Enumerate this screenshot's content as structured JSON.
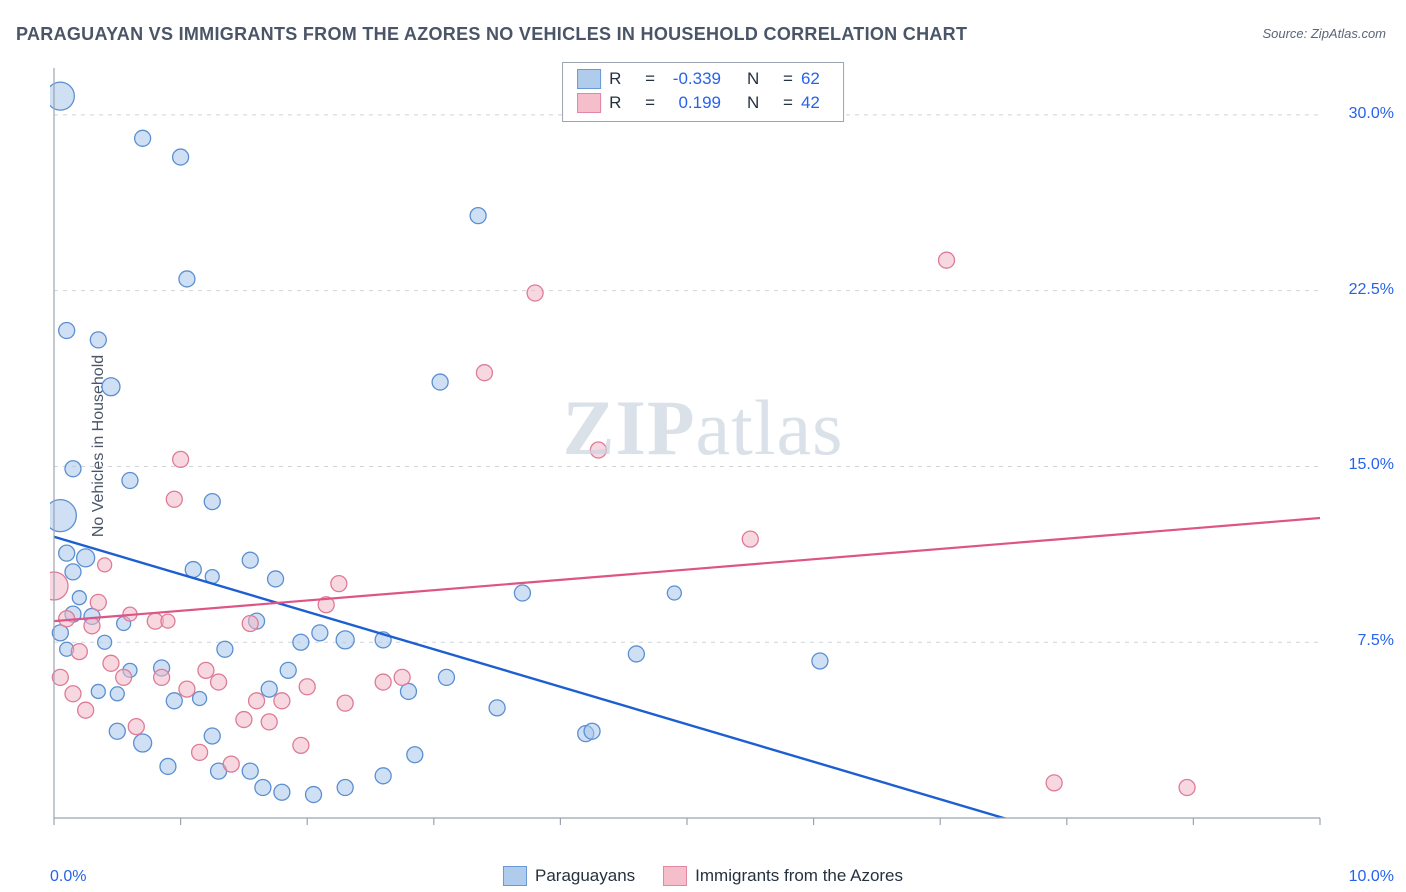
{
  "title": "PARAGUAYAN VS IMMIGRANTS FROM THE AZORES NO VEHICLES IN HOUSEHOLD CORRELATION CHART",
  "source_label": "Source: ZipAtlas.com",
  "ylabel": "No Vehicles in Household",
  "watermark_bold": "ZIP",
  "watermark_rest": "atlas",
  "chart": {
    "type": "scatter",
    "background_color": "#ffffff",
    "grid_color": "#d1d5db",
    "axis_color": "#9ca3af",
    "tick_color": "#9ca3af",
    "label_fontsize": 16,
    "title_fontsize": 18,
    "axis_label_color": "#2563eb",
    "xlim": [
      0,
      10
    ],
    "ylim": [
      0,
      32
    ],
    "x_ticks": [
      0,
      1,
      2,
      3,
      4,
      5,
      6,
      7,
      8,
      9,
      10
    ],
    "x_tick_labels": {
      "0": "0.0%",
      "10": "10.0%"
    },
    "y_gridlines": [
      7.5,
      15.0,
      22.5,
      30.0
    ],
    "y_tick_labels": [
      "7.5%",
      "15.0%",
      "22.5%",
      "30.0%"
    ],
    "series": [
      {
        "name": "Paraguayans",
        "fill_color": "#a8c7ec",
        "stroke_color": "#5b8fd1",
        "fill_opacity": 0.55,
        "marker_stroke_width": 1.3,
        "R": "-0.339",
        "N": "62",
        "regression": {
          "x1": 0,
          "y1": 12.0,
          "x2": 10,
          "y2": -4.0,
          "color": "#1d5fd1",
          "width": 2.4
        },
        "points": [
          {
            "x": 0.05,
            "y": 30.8,
            "r": 14
          },
          {
            "x": 0.7,
            "y": 29.0,
            "r": 8
          },
          {
            "x": 1.0,
            "y": 28.2,
            "r": 8
          },
          {
            "x": 0.05,
            "y": 12.9,
            "r": 16
          },
          {
            "x": 0.1,
            "y": 20.8,
            "r": 8
          },
          {
            "x": 0.35,
            "y": 20.4,
            "r": 8
          },
          {
            "x": 0.45,
            "y": 18.4,
            "r": 9
          },
          {
            "x": 1.05,
            "y": 23.0,
            "r": 8
          },
          {
            "x": 0.15,
            "y": 14.9,
            "r": 8
          },
          {
            "x": 0.6,
            "y": 14.4,
            "r": 8
          },
          {
            "x": 0.1,
            "y": 11.3,
            "r": 8
          },
          {
            "x": 0.25,
            "y": 11.1,
            "r": 9
          },
          {
            "x": 0.15,
            "y": 10.5,
            "r": 8
          },
          {
            "x": 0.2,
            "y": 9.4,
            "r": 7
          },
          {
            "x": 0.15,
            "y": 8.7,
            "r": 8
          },
          {
            "x": 0.3,
            "y": 8.6,
            "r": 8
          },
          {
            "x": 0.55,
            "y": 8.3,
            "r": 7
          },
          {
            "x": 0.05,
            "y": 7.9,
            "r": 8
          },
          {
            "x": 0.1,
            "y": 7.2,
            "r": 7
          },
          {
            "x": 0.4,
            "y": 7.5,
            "r": 7
          },
          {
            "x": 0.6,
            "y": 6.3,
            "r": 7
          },
          {
            "x": 0.85,
            "y": 6.4,
            "r": 8
          },
          {
            "x": 0.35,
            "y": 5.4,
            "r": 7
          },
          {
            "x": 0.5,
            "y": 5.3,
            "r": 7
          },
          {
            "x": 0.95,
            "y": 5.0,
            "r": 8
          },
          {
            "x": 1.15,
            "y": 5.1,
            "r": 7
          },
          {
            "x": 1.1,
            "y": 10.6,
            "r": 8
          },
          {
            "x": 1.25,
            "y": 13.5,
            "r": 8
          },
          {
            "x": 1.25,
            "y": 10.3,
            "r": 7
          },
          {
            "x": 1.35,
            "y": 7.2,
            "r": 8
          },
          {
            "x": 1.55,
            "y": 11.0,
            "r": 8
          },
          {
            "x": 1.6,
            "y": 8.4,
            "r": 8
          },
          {
            "x": 1.7,
            "y": 5.5,
            "r": 8
          },
          {
            "x": 1.75,
            "y": 10.2,
            "r": 8
          },
          {
            "x": 1.85,
            "y": 6.3,
            "r": 8
          },
          {
            "x": 1.95,
            "y": 7.5,
            "r": 8
          },
          {
            "x": 2.1,
            "y": 7.9,
            "r": 8
          },
          {
            "x": 2.3,
            "y": 7.6,
            "r": 9
          },
          {
            "x": 2.6,
            "y": 7.6,
            "r": 8
          },
          {
            "x": 2.8,
            "y": 5.4,
            "r": 8
          },
          {
            "x": 2.85,
            "y": 2.7,
            "r": 8
          },
          {
            "x": 3.05,
            "y": 18.6,
            "r": 8
          },
          {
            "x": 3.1,
            "y": 6.0,
            "r": 8
          },
          {
            "x": 3.35,
            "y": 25.7,
            "r": 8
          },
          {
            "x": 3.5,
            "y": 4.7,
            "r": 8
          },
          {
            "x": 3.7,
            "y": 9.6,
            "r": 8
          },
          {
            "x": 4.2,
            "y": 3.6,
            "r": 8
          },
          {
            "x": 4.25,
            "y": 3.7,
            "r": 8
          },
          {
            "x": 4.6,
            "y": 7.0,
            "r": 8
          },
          {
            "x": 4.9,
            "y": 9.6,
            "r": 7
          },
          {
            "x": 6.05,
            "y": 6.7,
            "r": 8
          },
          {
            "x": 0.7,
            "y": 3.2,
            "r": 9
          },
          {
            "x": 0.9,
            "y": 2.2,
            "r": 8
          },
          {
            "x": 1.25,
            "y": 3.5,
            "r": 8
          },
          {
            "x": 1.3,
            "y": 2.0,
            "r": 8
          },
          {
            "x": 1.55,
            "y": 2.0,
            "r": 8
          },
          {
            "x": 1.65,
            "y": 1.3,
            "r": 8
          },
          {
            "x": 1.8,
            "y": 1.1,
            "r": 8
          },
          {
            "x": 2.05,
            "y": 1.0,
            "r": 8
          },
          {
            "x": 2.3,
            "y": 1.3,
            "r": 8
          },
          {
            "x": 2.6,
            "y": 1.8,
            "r": 8
          },
          {
            "x": 0.5,
            "y": 3.7,
            "r": 8
          }
        ]
      },
      {
        "name": "Immigrants from the Azores",
        "fill_color": "#f3b8c6",
        "stroke_color": "#de7b97",
        "fill_opacity": 0.55,
        "marker_stroke_width": 1.3,
        "R": "0.199",
        "N": "42",
        "regression": {
          "x1": 0,
          "y1": 8.4,
          "x2": 10,
          "y2": 12.8,
          "color": "#de5585",
          "width": 2.2
        },
        "points": [
          {
            "x": 0.0,
            "y": 9.9,
            "r": 14
          },
          {
            "x": 0.1,
            "y": 8.5,
            "r": 8
          },
          {
            "x": 0.2,
            "y": 7.1,
            "r": 8
          },
          {
            "x": 0.3,
            "y": 8.2,
            "r": 8
          },
          {
            "x": 0.35,
            "y": 9.2,
            "r": 8
          },
          {
            "x": 0.45,
            "y": 6.6,
            "r": 8
          },
          {
            "x": 0.6,
            "y": 8.7,
            "r": 7
          },
          {
            "x": 0.55,
            "y": 6.0,
            "r": 8
          },
          {
            "x": 0.8,
            "y": 8.4,
            "r": 8
          },
          {
            "x": 0.85,
            "y": 6.0,
            "r": 8
          },
          {
            "x": 0.9,
            "y": 8.4,
            "r": 7
          },
          {
            "x": 0.95,
            "y": 13.6,
            "r": 8
          },
          {
            "x": 1.0,
            "y": 15.3,
            "r": 8
          },
          {
            "x": 1.05,
            "y": 5.5,
            "r": 8
          },
          {
            "x": 1.2,
            "y": 6.3,
            "r": 8
          },
          {
            "x": 1.3,
            "y": 5.8,
            "r": 8
          },
          {
            "x": 1.5,
            "y": 4.2,
            "r": 8
          },
          {
            "x": 1.55,
            "y": 8.3,
            "r": 8
          },
          {
            "x": 1.6,
            "y": 5.0,
            "r": 8
          },
          {
            "x": 1.7,
            "y": 4.1,
            "r": 8
          },
          {
            "x": 1.8,
            "y": 5.0,
            "r": 8
          },
          {
            "x": 1.95,
            "y": 3.1,
            "r": 8
          },
          {
            "x": 2.0,
            "y": 5.6,
            "r": 8
          },
          {
            "x": 2.15,
            "y": 9.1,
            "r": 8
          },
          {
            "x": 2.25,
            "y": 10.0,
            "r": 8
          },
          {
            "x": 2.3,
            "y": 4.9,
            "r": 8
          },
          {
            "x": 2.6,
            "y": 5.8,
            "r": 8
          },
          {
            "x": 2.75,
            "y": 6.0,
            "r": 8
          },
          {
            "x": 3.4,
            "y": 19.0,
            "r": 8
          },
          {
            "x": 3.8,
            "y": 22.4,
            "r": 8
          },
          {
            "x": 4.3,
            "y": 15.7,
            "r": 8
          },
          {
            "x": 5.5,
            "y": 11.9,
            "r": 8
          },
          {
            "x": 7.05,
            "y": 23.8,
            "r": 8
          },
          {
            "x": 7.9,
            "y": 1.5,
            "r": 8
          },
          {
            "x": 8.95,
            "y": 1.3,
            "r": 8
          },
          {
            "x": 0.4,
            "y": 10.8,
            "r": 7
          },
          {
            "x": 0.05,
            "y": 6.0,
            "r": 8
          },
          {
            "x": 0.15,
            "y": 5.3,
            "r": 8
          },
          {
            "x": 0.25,
            "y": 4.6,
            "r": 8
          },
          {
            "x": 0.65,
            "y": 3.9,
            "r": 8
          },
          {
            "x": 1.15,
            "y": 2.8,
            "r": 8
          },
          {
            "x": 1.4,
            "y": 2.3,
            "r": 8
          }
        ]
      }
    ]
  },
  "legend_rn_labels": {
    "R": "R",
    "eq": "=",
    "N": "N"
  },
  "legend_bottom": {
    "series1_label": "Paraguayans",
    "series2_label": "Immigrants from the Azores"
  }
}
